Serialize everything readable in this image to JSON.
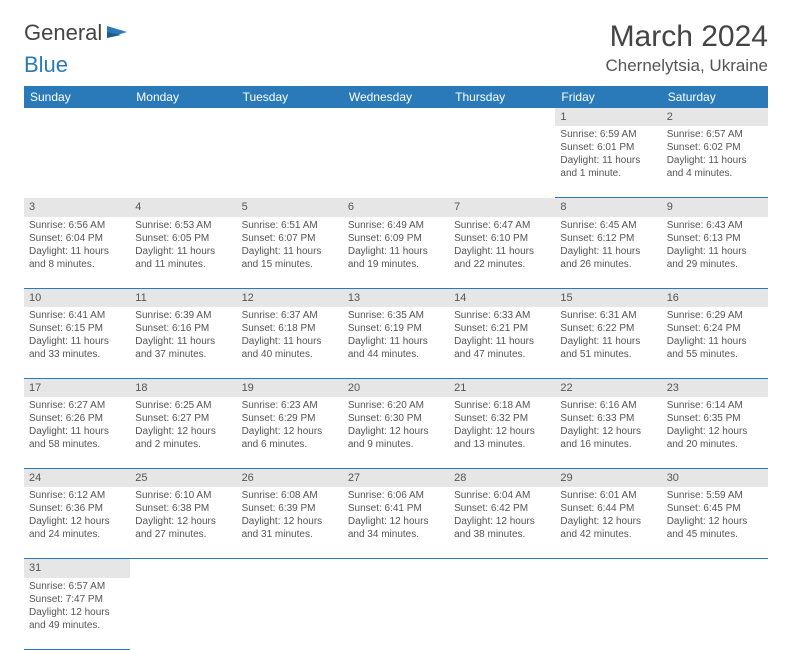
{
  "logo": {
    "general": "General",
    "blue": "Blue"
  },
  "header": {
    "title": "March 2024",
    "location": "Chernelytsia, Ukraine"
  },
  "weekdays": [
    "Sunday",
    "Monday",
    "Tuesday",
    "Wednesday",
    "Thursday",
    "Friday",
    "Saturday"
  ],
  "colors": {
    "header_bg": "#2a7ab9",
    "daynum_bg": "#e6e6e6",
    "row_border": "#2a7ab9",
    "text": "#555555"
  },
  "weeks": [
    {
      "nums": [
        "",
        "",
        "",
        "",
        "",
        "1",
        "2"
      ],
      "cells": [
        {
          "blank": true
        },
        {
          "blank": true
        },
        {
          "blank": true
        },
        {
          "blank": true
        },
        {
          "blank": true
        },
        {
          "sunrise": "Sunrise: 6:59 AM",
          "sunset": "Sunset: 6:01 PM",
          "day1": "Daylight: 11 hours",
          "day2": "and 1 minute."
        },
        {
          "sunrise": "Sunrise: 6:57 AM",
          "sunset": "Sunset: 6:02 PM",
          "day1": "Daylight: 11 hours",
          "day2": "and 4 minutes."
        }
      ]
    },
    {
      "nums": [
        "3",
        "4",
        "5",
        "6",
        "7",
        "8",
        "9"
      ],
      "cells": [
        {
          "sunrise": "Sunrise: 6:56 AM",
          "sunset": "Sunset: 6:04 PM",
          "day1": "Daylight: 11 hours",
          "day2": "and 8 minutes."
        },
        {
          "sunrise": "Sunrise: 6:53 AM",
          "sunset": "Sunset: 6:05 PM",
          "day1": "Daylight: 11 hours",
          "day2": "and 11 minutes."
        },
        {
          "sunrise": "Sunrise: 6:51 AM",
          "sunset": "Sunset: 6:07 PM",
          "day1": "Daylight: 11 hours",
          "day2": "and 15 minutes."
        },
        {
          "sunrise": "Sunrise: 6:49 AM",
          "sunset": "Sunset: 6:09 PM",
          "day1": "Daylight: 11 hours",
          "day2": "and 19 minutes."
        },
        {
          "sunrise": "Sunrise: 6:47 AM",
          "sunset": "Sunset: 6:10 PM",
          "day1": "Daylight: 11 hours",
          "day2": "and 22 minutes."
        },
        {
          "sunrise": "Sunrise: 6:45 AM",
          "sunset": "Sunset: 6:12 PM",
          "day1": "Daylight: 11 hours",
          "day2": "and 26 minutes."
        },
        {
          "sunrise": "Sunrise: 6:43 AM",
          "sunset": "Sunset: 6:13 PM",
          "day1": "Daylight: 11 hours",
          "day2": "and 29 minutes."
        }
      ]
    },
    {
      "nums": [
        "10",
        "11",
        "12",
        "13",
        "14",
        "15",
        "16"
      ],
      "cells": [
        {
          "sunrise": "Sunrise: 6:41 AM",
          "sunset": "Sunset: 6:15 PM",
          "day1": "Daylight: 11 hours",
          "day2": "and 33 minutes."
        },
        {
          "sunrise": "Sunrise: 6:39 AM",
          "sunset": "Sunset: 6:16 PM",
          "day1": "Daylight: 11 hours",
          "day2": "and 37 minutes."
        },
        {
          "sunrise": "Sunrise: 6:37 AM",
          "sunset": "Sunset: 6:18 PM",
          "day1": "Daylight: 11 hours",
          "day2": "and 40 minutes."
        },
        {
          "sunrise": "Sunrise: 6:35 AM",
          "sunset": "Sunset: 6:19 PM",
          "day1": "Daylight: 11 hours",
          "day2": "and 44 minutes."
        },
        {
          "sunrise": "Sunrise: 6:33 AM",
          "sunset": "Sunset: 6:21 PM",
          "day1": "Daylight: 11 hours",
          "day2": "and 47 minutes."
        },
        {
          "sunrise": "Sunrise: 6:31 AM",
          "sunset": "Sunset: 6:22 PM",
          "day1": "Daylight: 11 hours",
          "day2": "and 51 minutes."
        },
        {
          "sunrise": "Sunrise: 6:29 AM",
          "sunset": "Sunset: 6:24 PM",
          "day1": "Daylight: 11 hours",
          "day2": "and 55 minutes."
        }
      ]
    },
    {
      "nums": [
        "17",
        "18",
        "19",
        "20",
        "21",
        "22",
        "23"
      ],
      "cells": [
        {
          "sunrise": "Sunrise: 6:27 AM",
          "sunset": "Sunset: 6:26 PM",
          "day1": "Daylight: 11 hours",
          "day2": "and 58 minutes."
        },
        {
          "sunrise": "Sunrise: 6:25 AM",
          "sunset": "Sunset: 6:27 PM",
          "day1": "Daylight: 12 hours",
          "day2": "and 2 minutes."
        },
        {
          "sunrise": "Sunrise: 6:23 AM",
          "sunset": "Sunset: 6:29 PM",
          "day1": "Daylight: 12 hours",
          "day2": "and 6 minutes."
        },
        {
          "sunrise": "Sunrise: 6:20 AM",
          "sunset": "Sunset: 6:30 PM",
          "day1": "Daylight: 12 hours",
          "day2": "and 9 minutes."
        },
        {
          "sunrise": "Sunrise: 6:18 AM",
          "sunset": "Sunset: 6:32 PM",
          "day1": "Daylight: 12 hours",
          "day2": "and 13 minutes."
        },
        {
          "sunrise": "Sunrise: 6:16 AM",
          "sunset": "Sunset: 6:33 PM",
          "day1": "Daylight: 12 hours",
          "day2": "and 16 minutes."
        },
        {
          "sunrise": "Sunrise: 6:14 AM",
          "sunset": "Sunset: 6:35 PM",
          "day1": "Daylight: 12 hours",
          "day2": "and 20 minutes."
        }
      ]
    },
    {
      "nums": [
        "24",
        "25",
        "26",
        "27",
        "28",
        "29",
        "30"
      ],
      "cells": [
        {
          "sunrise": "Sunrise: 6:12 AM",
          "sunset": "Sunset: 6:36 PM",
          "day1": "Daylight: 12 hours",
          "day2": "and 24 minutes."
        },
        {
          "sunrise": "Sunrise: 6:10 AM",
          "sunset": "Sunset: 6:38 PM",
          "day1": "Daylight: 12 hours",
          "day2": "and 27 minutes."
        },
        {
          "sunrise": "Sunrise: 6:08 AM",
          "sunset": "Sunset: 6:39 PM",
          "day1": "Daylight: 12 hours",
          "day2": "and 31 minutes."
        },
        {
          "sunrise": "Sunrise: 6:06 AM",
          "sunset": "Sunset: 6:41 PM",
          "day1": "Daylight: 12 hours",
          "day2": "and 34 minutes."
        },
        {
          "sunrise": "Sunrise: 6:04 AM",
          "sunset": "Sunset: 6:42 PM",
          "day1": "Daylight: 12 hours",
          "day2": "and 38 minutes."
        },
        {
          "sunrise": "Sunrise: 6:01 AM",
          "sunset": "Sunset: 6:44 PM",
          "day1": "Daylight: 12 hours",
          "day2": "and 42 minutes."
        },
        {
          "sunrise": "Sunrise: 5:59 AM",
          "sunset": "Sunset: 6:45 PM",
          "day1": "Daylight: 12 hours",
          "day2": "and 45 minutes."
        }
      ]
    },
    {
      "nums": [
        "31",
        "",
        "",
        "",
        "",
        "",
        ""
      ],
      "cells": [
        {
          "sunrise": "Sunrise: 6:57 AM",
          "sunset": "Sunset: 7:47 PM",
          "day1": "Daylight: 12 hours",
          "day2": "and 49 minutes."
        },
        {
          "blank": true
        },
        {
          "blank": true
        },
        {
          "blank": true
        },
        {
          "blank": true
        },
        {
          "blank": true
        },
        {
          "blank": true
        }
      ]
    }
  ]
}
